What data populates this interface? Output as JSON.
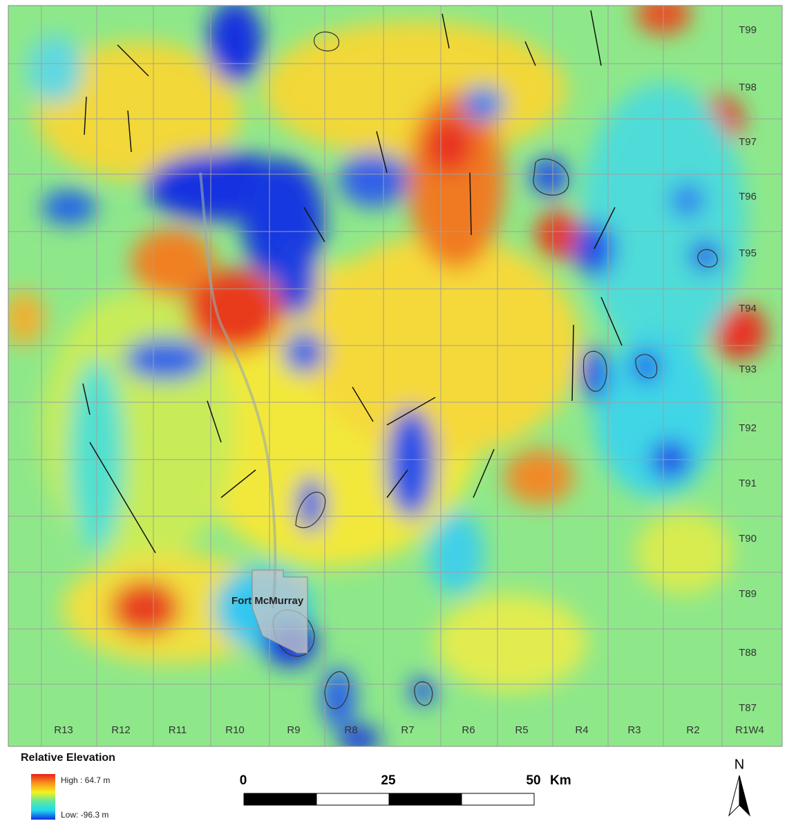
{
  "map": {
    "township_labels": [
      "T99",
      "T98",
      "T97",
      "T96",
      "T95",
      "T94",
      "T93",
      "T92",
      "T91",
      "T90",
      "T89",
      "T88",
      "T87"
    ],
    "range_labels": [
      "R13",
      "R12",
      "R11",
      "R10",
      "R9",
      "R8",
      "R7",
      "R6",
      "R5",
      "R4",
      "R3",
      "R2",
      "R1W4"
    ],
    "place_label": "Fort McMurray",
    "legend": {
      "title": "Relative Elevation",
      "high": "High : 64.7 m",
      "low": "Low: -96.3 m"
    },
    "scale_bar": {
      "ticks": [
        "0",
        "25",
        "50"
      ],
      "unit": "Km"
    },
    "north_label": "N"
  }
}
